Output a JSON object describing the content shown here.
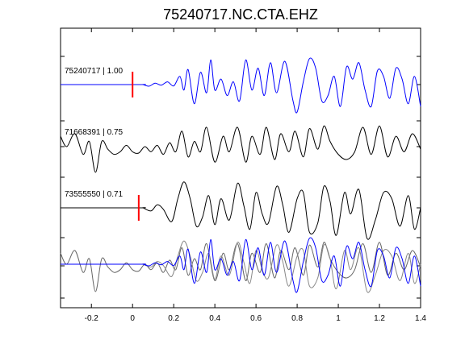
{
  "chart_data": {
    "type": "line",
    "title": "75240717.NC.CTA.EHZ",
    "xlabel": "",
    "ylabel": "",
    "xlim": [
      -0.35,
      1.4
    ],
    "xticks": [
      -0.2,
      0,
      0.2,
      0.4,
      0.6,
      0.8,
      1,
      1.2,
      1.4
    ],
    "xtick_labels": [
      "-0.2",
      "0",
      "0.2",
      "0.4",
      "0.6",
      "0.8",
      "1",
      "1.2",
      "1.4"
    ],
    "grid": false,
    "traces": [
      {
        "label": "75240717 | 1.00",
        "color": "#0000ff",
        "pick_time": 0.0,
        "pick_color": "#ff0000",
        "onset": 0.05,
        "waveform": [
          [
            0.05,
            0.0
          ],
          [
            0.08,
            -0.06
          ],
          [
            0.11,
            0.05
          ],
          [
            0.14,
            -0.02
          ],
          [
            0.17,
            0.1
          ],
          [
            0.2,
            -0.05
          ],
          [
            0.23,
            0.3
          ],
          [
            0.25,
            -0.2
          ],
          [
            0.27,
            0.55
          ],
          [
            0.3,
            -0.7
          ],
          [
            0.33,
            0.45
          ],
          [
            0.36,
            -0.3
          ],
          [
            0.38,
            0.9
          ],
          [
            0.4,
            -0.2
          ],
          [
            0.43,
            0.2
          ],
          [
            0.46,
            -0.4
          ],
          [
            0.49,
            0.1
          ],
          [
            0.52,
            -0.6
          ],
          [
            0.55,
            0.9
          ],
          [
            0.58,
            -0.2
          ],
          [
            0.61,
            0.6
          ],
          [
            0.64,
            -0.4
          ],
          [
            0.67,
            0.8
          ],
          [
            0.7,
            -0.3
          ],
          [
            0.74,
            0.85
          ],
          [
            0.78,
            -0.6
          ],
          [
            0.8,
            -1.0
          ],
          [
            0.83,
            0.1
          ],
          [
            0.86,
            0.95
          ],
          [
            0.89,
            0.6
          ],
          [
            0.92,
            -0.6
          ],
          [
            0.95,
            -0.4
          ],
          [
            0.98,
            0.3
          ],
          [
            1.01,
            -0.8
          ],
          [
            1.04,
            0.65
          ],
          [
            1.07,
            0.2
          ],
          [
            1.1,
            0.8
          ],
          [
            1.13,
            -0.2
          ],
          [
            1.16,
            -0.8
          ],
          [
            1.19,
            0.5
          ],
          [
            1.22,
            0.3
          ],
          [
            1.25,
            -0.5
          ],
          [
            1.28,
            0.6
          ],
          [
            1.31,
            0.2
          ],
          [
            1.34,
            -0.7
          ],
          [
            1.37,
            0.3
          ],
          [
            1.4,
            -0.8
          ]
        ]
      },
      {
        "label": "71668391 | 0.75",
        "color": "#000000",
        "pick_time": null,
        "onset": -0.35,
        "waveform": [
          [
            -0.35,
            0.4
          ],
          [
            -0.32,
            0.0
          ],
          [
            -0.28,
            0.5
          ],
          [
            -0.24,
            -0.3
          ],
          [
            -0.21,
            0.2
          ],
          [
            -0.18,
            -1.0
          ],
          [
            -0.15,
            0.2
          ],
          [
            -0.12,
            -0.1
          ],
          [
            -0.09,
            -0.3
          ],
          [
            -0.06,
            -0.2
          ],
          [
            -0.03,
            0.05
          ],
          [
            0.0,
            -0.2
          ],
          [
            0.03,
            -0.25
          ],
          [
            0.06,
            0.0
          ],
          [
            0.09,
            -0.2
          ],
          [
            0.12,
            0.05
          ],
          [
            0.15,
            -0.3
          ],
          [
            0.18,
            0.15
          ],
          [
            0.21,
            -0.2
          ],
          [
            0.24,
            0.6
          ],
          [
            0.27,
            -0.4
          ],
          [
            0.3,
            0.2
          ],
          [
            0.33,
            -0.2
          ],
          [
            0.36,
            0.75
          ],
          [
            0.4,
            -0.6
          ],
          [
            0.44,
            0.4
          ],
          [
            0.47,
            -0.2
          ],
          [
            0.51,
            0.75
          ],
          [
            0.55,
            -0.6
          ],
          [
            0.58,
            0.4
          ],
          [
            0.62,
            -0.3
          ],
          [
            0.65,
            0.75
          ],
          [
            0.69,
            -0.5
          ],
          [
            0.72,
            0.5
          ],
          [
            0.76,
            -0.2
          ],
          [
            0.79,
            0.6
          ],
          [
            0.83,
            -0.4
          ],
          [
            0.86,
            0.7
          ],
          [
            0.9,
            -0.1
          ],
          [
            0.93,
            0.8
          ],
          [
            0.96,
            0.2
          ],
          [
            1.0,
            -0.3
          ],
          [
            1.04,
            -0.5
          ],
          [
            1.08,
            -0.2
          ],
          [
            1.12,
            0.75
          ],
          [
            1.16,
            -0.3
          ],
          [
            1.2,
            0.8
          ],
          [
            1.24,
            -0.4
          ],
          [
            1.28,
            0.4
          ],
          [
            1.32,
            -0.2
          ],
          [
            1.36,
            0.5
          ],
          [
            1.4,
            -0.1
          ]
        ]
      },
      {
        "label": "73555550 | 0.71",
        "color": "#000000",
        "pick_time": 0.03,
        "pick_color": "#ff0000",
        "onset": 0.05,
        "waveform": [
          [
            0.05,
            0.0
          ],
          [
            0.09,
            -0.1
          ],
          [
            0.12,
            0.1
          ],
          [
            0.15,
            -0.05
          ],
          [
            0.19,
            -0.45
          ],
          [
            0.22,
            0.3
          ],
          [
            0.25,
            0.85
          ],
          [
            0.28,
            0.3
          ],
          [
            0.31,
            -0.6
          ],
          [
            0.34,
            -0.3
          ],
          [
            0.37,
            0.4
          ],
          [
            0.4,
            -0.55
          ],
          [
            0.43,
            0.3
          ],
          [
            0.47,
            -0.4
          ],
          [
            0.51,
            0.8
          ],
          [
            0.54,
            0.1
          ],
          [
            0.57,
            -0.7
          ],
          [
            0.6,
            0.5
          ],
          [
            0.63,
            -0.2
          ],
          [
            0.66,
            -0.5
          ],
          [
            0.7,
            0.7
          ],
          [
            0.73,
            0.1
          ],
          [
            0.76,
            -0.8
          ],
          [
            0.8,
            0.3
          ],
          [
            0.83,
            0.5
          ],
          [
            0.86,
            -0.8
          ],
          [
            0.9,
            -0.5
          ],
          [
            0.93,
            0.7
          ],
          [
            0.96,
            0.2
          ],
          [
            0.99,
            -0.9
          ],
          [
            1.03,
            0.5
          ],
          [
            1.06,
            -0.2
          ],
          [
            1.1,
            0.6
          ],
          [
            1.14,
            -1.0
          ],
          [
            1.18,
            -0.4
          ],
          [
            1.22,
            0.5
          ],
          [
            1.26,
            0.3
          ],
          [
            1.3,
            -0.6
          ],
          [
            1.34,
            0.4
          ],
          [
            1.37,
            -0.7
          ],
          [
            1.4,
            0.0
          ]
        ]
      }
    ],
    "stack": {
      "label": "",
      "overlay_of_traces": [
        0,
        1,
        2
      ]
    }
  }
}
